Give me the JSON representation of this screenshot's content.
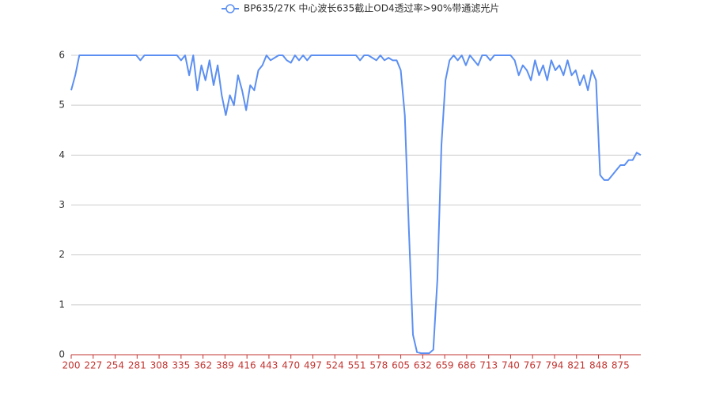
{
  "chart_data": {
    "type": "line",
    "series": [
      {
        "name": "BP635/27K 中心波长635截止OD4透过率>90%带通滤光片",
        "color": "#5b8ff2",
        "values": [
          5.3,
          5.6,
          6,
          6,
          6,
          6,
          6,
          6,
          6,
          6,
          6,
          6,
          6,
          6,
          6,
          6,
          6,
          5.9,
          6,
          6,
          6,
          6,
          6,
          6,
          6,
          6,
          6,
          5.9,
          6,
          5.6,
          6,
          5.3,
          5.8,
          5.5,
          5.9,
          5.4,
          5.8,
          5.2,
          4.8,
          5.2,
          5.0,
          5.6,
          5.3,
          4.9,
          5.4,
          5.3,
          5.7,
          5.8,
          6,
          5.9,
          5.95,
          6,
          6,
          5.9,
          5.85,
          6,
          5.9,
          6,
          5.9,
          6,
          6,
          6,
          6,
          6,
          6,
          6,
          6,
          6,
          6,
          6,
          6,
          5.9,
          6,
          6,
          5.95,
          5.9,
          6,
          5.9,
          5.95,
          5.9,
          5.9,
          5.7,
          4.8,
          2.5,
          0.4,
          0.05,
          0.03,
          0.03,
          0.03,
          0.1,
          1.5,
          4.2,
          5.5,
          5.9,
          6,
          5.9,
          6,
          5.8,
          6,
          5.9,
          5.8,
          6,
          6,
          5.9,
          6,
          6,
          6,
          6,
          6,
          5.9,
          5.6,
          5.8,
          5.7,
          5.5,
          5.9,
          5.6,
          5.8,
          5.5,
          5.9,
          5.7,
          5.8,
          5.6,
          5.9,
          5.6,
          5.7,
          5.4,
          5.6,
          5.3,
          5.7,
          5.5,
          3.6,
          3.5,
          3.5,
          3.6,
          3.7,
          3.8,
          3.8,
          3.9,
          3.9,
          4.05,
          4.0
        ]
      }
    ],
    "x": [
      200,
      205,
      210,
      215,
      220,
      225,
      230,
      235,
      240,
      245,
      250,
      255,
      260,
      265,
      270,
      275,
      280,
      285,
      290,
      295,
      300,
      305,
      310,
      315,
      320,
      325,
      330,
      335,
      340,
      345,
      350,
      355,
      360,
      365,
      370,
      375,
      380,
      385,
      390,
      395,
      400,
      405,
      410,
      415,
      420,
      425,
      430,
      435,
      440,
      445,
      450,
      455,
      460,
      465,
      470,
      475,
      480,
      485,
      490,
      495,
      500,
      505,
      510,
      515,
      520,
      525,
      530,
      535,
      540,
      545,
      550,
      555,
      560,
      565,
      570,
      575,
      580,
      585,
      590,
      595,
      600,
      605,
      610,
      615,
      620,
      625,
      630,
      635,
      640,
      645,
      650,
      655,
      660,
      665,
      670,
      675,
      680,
      685,
      690,
      695,
      700,
      705,
      710,
      715,
      720,
      725,
      730,
      735,
      740,
      745,
      750,
      755,
      760,
      765,
      770,
      775,
      780,
      785,
      790,
      795,
      800,
      805,
      810,
      815,
      820,
      825,
      830,
      835,
      840,
      845,
      850,
      855,
      860,
      865,
      870,
      875,
      880,
      885,
      890,
      895,
      900
    ],
    "xlim": [
      200,
      900
    ],
    "xticks": [
      200,
      227,
      254,
      281,
      308,
      335,
      362,
      389,
      416,
      443,
      470,
      497,
      524,
      551,
      578,
      605,
      632,
      659,
      686,
      713,
      740,
      767,
      794,
      821,
      848,
      875
    ],
    "ylim": [
      0,
      6
    ],
    "yticks": [
      0,
      1,
      2,
      3,
      4,
      5,
      6
    ],
    "grid": true
  }
}
